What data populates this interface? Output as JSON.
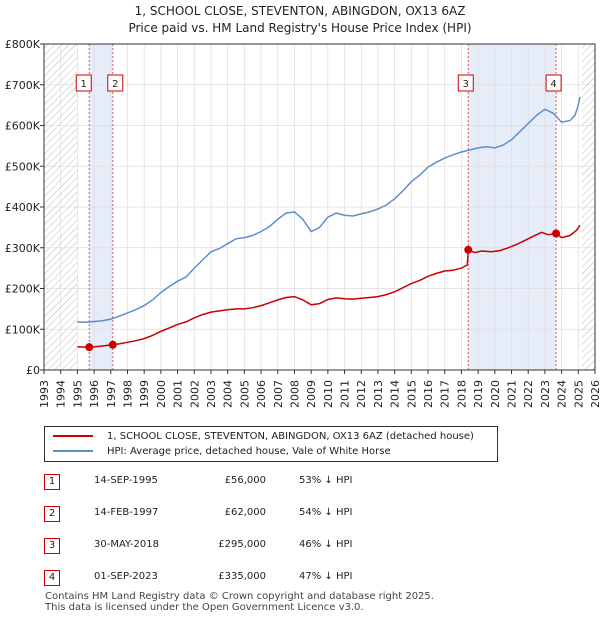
{
  "chart_data": {
    "type": "line",
    "title": "1, SCHOOL CLOSE, STEVENTON, ABINGDON, OX13 6AZ",
    "subtitle": "Price paid vs. HM Land Registry's House Price Index (HPI)",
    "xlabel": "",
    "ylabel": "",
    "xlim": [
      1993,
      2026
    ],
    "ylim": [
      0,
      800000
    ],
    "x_ticks": [
      1993,
      1994,
      1995,
      1996,
      1997,
      1998,
      1999,
      2000,
      2001,
      2002,
      2003,
      2004,
      2005,
      2006,
      2007,
      2008,
      2009,
      2010,
      2011,
      2012,
      2013,
      2014,
      2015,
      2016,
      2017,
      2018,
      2019,
      2020,
      2021,
      2022,
      2023,
      2024,
      2025,
      2026
    ],
    "y_ticks": [
      {
        "value": 0,
        "label": "£0"
      },
      {
        "value": 100000,
        "label": "£100K"
      },
      {
        "value": 200000,
        "label": "£200K"
      },
      {
        "value": 300000,
        "label": "£300K"
      },
      {
        "value": 400000,
        "label": "£400K"
      },
      {
        "value": 500000,
        "label": "£500K"
      },
      {
        "value": 600000,
        "label": "£600K"
      },
      {
        "value": 700000,
        "label": "£700K"
      },
      {
        "value": 800000,
        "label": "£800K"
      }
    ],
    "data_start": 1995.0,
    "data_end": 2025.2,
    "shaded_regions": [
      {
        "from": 1993,
        "to": 1995.0,
        "style": "hatch"
      },
      {
        "from": 1995.71,
        "to": 1997.12,
        "style": "blue"
      },
      {
        "from": 2018.41,
        "to": 2023.67,
        "style": "blue"
      },
      {
        "from": 2025.2,
        "to": 2026,
        "style": "hatch"
      }
    ],
    "series": [
      {
        "name": "1, SCHOOL CLOSE, STEVENTON, ABINGDON, OX13 6AZ (detached house)",
        "color": "#cc0000",
        "points": [
          [
            1995.0,
            57000
          ],
          [
            1995.71,
            56000
          ],
          [
            1996.3,
            58000
          ],
          [
            1997.12,
            62000
          ],
          [
            1997.5,
            64000
          ],
          [
            1998.0,
            68000
          ],
          [
            1998.5,
            72000
          ],
          [
            1999.0,
            77000
          ],
          [
            1999.5,
            85000
          ],
          [
            2000.0,
            95000
          ],
          [
            2000.5,
            103000
          ],
          [
            2001.0,
            112000
          ],
          [
            2001.5,
            118000
          ],
          [
            2002.0,
            128000
          ],
          [
            2002.5,
            136000
          ],
          [
            2003.0,
            142000
          ],
          [
            2003.5,
            145000
          ],
          [
            2004.0,
            148000
          ],
          [
            2004.5,
            150000
          ],
          [
            2005.0,
            150000
          ],
          [
            2005.5,
            153000
          ],
          [
            2006.0,
            158000
          ],
          [
            2006.5,
            165000
          ],
          [
            2007.0,
            172000
          ],
          [
            2007.5,
            178000
          ],
          [
            2008.0,
            180000
          ],
          [
            2008.5,
            172000
          ],
          [
            2009.0,
            160000
          ],
          [
            2009.5,
            163000
          ],
          [
            2010.0,
            173000
          ],
          [
            2010.5,
            177000
          ],
          [
            2011.0,
            175000
          ],
          [
            2011.5,
            174000
          ],
          [
            2012.0,
            176000
          ],
          [
            2012.5,
            178000
          ],
          [
            2013.0,
            180000
          ],
          [
            2013.5,
            185000
          ],
          [
            2014.0,
            192000
          ],
          [
            2014.5,
            202000
          ],
          [
            2015.0,
            212000
          ],
          [
            2015.5,
            220000
          ],
          [
            2016.0,
            230000
          ],
          [
            2016.5,
            237000
          ],
          [
            2017.0,
            243000
          ],
          [
            2017.5,
            245000
          ],
          [
            2018.0,
            250000
          ],
          [
            2018.35,
            258000
          ],
          [
            2018.41,
            295000
          ],
          [
            2018.8,
            288000
          ],
          [
            2019.2,
            292000
          ],
          [
            2019.8,
            290000
          ],
          [
            2020.3,
            293000
          ],
          [
            2020.8,
            300000
          ],
          [
            2021.3,
            308000
          ],
          [
            2021.8,
            318000
          ],
          [
            2022.3,
            328000
          ],
          [
            2022.8,
            338000
          ],
          [
            2023.2,
            332000
          ],
          [
            2023.67,
            335000
          ],
          [
            2024.0,
            325000
          ],
          [
            2024.5,
            330000
          ],
          [
            2024.9,
            343000
          ],
          [
            2025.1,
            355000
          ]
        ]
      },
      {
        "name": "HPI: Average price, detached house, Vale of White Horse",
        "color": "#5b8fcb",
        "points": [
          [
            1995.0,
            118000
          ],
          [
            1995.5,
            117000
          ],
          [
            1996.0,
            119000
          ],
          [
            1996.5,
            121000
          ],
          [
            1997.0,
            125000
          ],
          [
            1997.5,
            132000
          ],
          [
            1998.0,
            140000
          ],
          [
            1998.5,
            148000
          ],
          [
            1999.0,
            158000
          ],
          [
            1999.5,
            172000
          ],
          [
            2000.0,
            190000
          ],
          [
            2000.5,
            205000
          ],
          [
            2001.0,
            218000
          ],
          [
            2001.5,
            228000
          ],
          [
            2002.0,
            250000
          ],
          [
            2002.5,
            270000
          ],
          [
            2003.0,
            290000
          ],
          [
            2003.5,
            298000
          ],
          [
            2004.0,
            310000
          ],
          [
            2004.5,
            322000
          ],
          [
            2005.0,
            325000
          ],
          [
            2005.5,
            330000
          ],
          [
            2006.0,
            340000
          ],
          [
            2006.5,
            352000
          ],
          [
            2007.0,
            370000
          ],
          [
            2007.5,
            385000
          ],
          [
            2008.0,
            388000
          ],
          [
            2008.5,
            370000
          ],
          [
            2009.0,
            340000
          ],
          [
            2009.5,
            350000
          ],
          [
            2010.0,
            375000
          ],
          [
            2010.5,
            385000
          ],
          [
            2011.0,
            380000
          ],
          [
            2011.5,
            378000
          ],
          [
            2012.0,
            383000
          ],
          [
            2012.5,
            388000
          ],
          [
            2013.0,
            395000
          ],
          [
            2013.5,
            405000
          ],
          [
            2014.0,
            420000
          ],
          [
            2014.5,
            440000
          ],
          [
            2015.0,
            462000
          ],
          [
            2015.5,
            478000
          ],
          [
            2016.0,
            498000
          ],
          [
            2016.5,
            510000
          ],
          [
            2017.0,
            520000
          ],
          [
            2017.5,
            528000
          ],
          [
            2018.0,
            535000
          ],
          [
            2018.5,
            540000
          ],
          [
            2019.0,
            545000
          ],
          [
            2019.5,
            548000
          ],
          [
            2020.0,
            545000
          ],
          [
            2020.5,
            552000
          ],
          [
            2021.0,
            565000
          ],
          [
            2021.5,
            585000
          ],
          [
            2022.0,
            605000
          ],
          [
            2022.5,
            625000
          ],
          [
            2023.0,
            640000
          ],
          [
            2023.5,
            630000
          ],
          [
            2024.0,
            608000
          ],
          [
            2024.5,
            612000
          ],
          [
            2024.8,
            625000
          ],
          [
            2025.0,
            650000
          ],
          [
            2025.1,
            670000
          ]
        ]
      }
    ],
    "sales": [
      {
        "id": "1",
        "x": 1995.71,
        "y": 56000
      },
      {
        "id": "2",
        "x": 1997.12,
        "y": 62000
      },
      {
        "id": "3",
        "x": 2018.41,
        "y": 295000
      },
      {
        "id": "4",
        "x": 2023.67,
        "y": 335000
      }
    ]
  },
  "legend": {
    "property_label": "1, SCHOOL CLOSE, STEVENTON, ABINGDON, OX13 6AZ (detached house)",
    "hpi_label": "HPI: Average price, detached house, Vale of White Horse"
  },
  "transactions": [
    {
      "num": "1",
      "date": "14-SEP-1995",
      "price": "£56,000",
      "hpi": "53% ↓ HPI"
    },
    {
      "num": "2",
      "date": "14-FEB-1997",
      "price": "£62,000",
      "hpi": "54% ↓ HPI"
    },
    {
      "num": "3",
      "date": "30-MAY-2018",
      "price": "£295,000",
      "hpi": "46% ↓ HPI"
    },
    {
      "num": "4",
      "date": "01-SEP-2023",
      "price": "£335,000",
      "hpi": "47% ↓ HPI"
    }
  ],
  "footer": {
    "line1": "Contains HM Land Registry data © Crown copyright and database right 2025.",
    "line2": "This data is licensed under the Open Government Licence v3.0."
  },
  "colors": {
    "property": "#cc0000",
    "hpi": "#5b8fcb",
    "shade": "#e6ecf8",
    "grid": "#dddddd",
    "sale_line": "#e05a5a"
  }
}
